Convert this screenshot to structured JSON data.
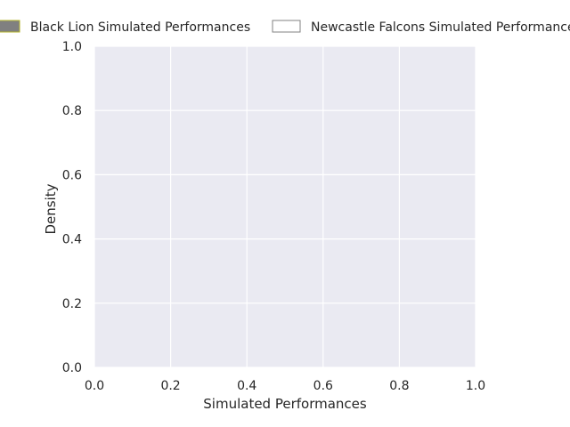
{
  "chart_data": {
    "type": "area",
    "title": "",
    "xlabel": "Simulated Performances",
    "ylabel": "Density",
    "xlim": [
      0.0,
      1.0
    ],
    "ylim": [
      0.0,
      1.0
    ],
    "x_ticks": [
      "0.0",
      "0.2",
      "0.4",
      "0.6",
      "0.8",
      "1.0"
    ],
    "y_ticks": [
      "0.0",
      "0.2",
      "0.4",
      "0.6",
      "0.8",
      "1.0"
    ],
    "grid": true,
    "legend_position": "top",
    "series": [
      {
        "name": "Black Lion Simulated Performances",
        "fill": "#808080",
        "edge": "#b5b52a",
        "values": []
      },
      {
        "name": "Newcastle Falcons Simulated Performances",
        "fill": "#ffffff",
        "edge": "#808080",
        "values": []
      }
    ],
    "colors": {
      "plot_bg": "#eaeaf2",
      "grid": "#ffffff",
      "text": "#262626"
    }
  }
}
